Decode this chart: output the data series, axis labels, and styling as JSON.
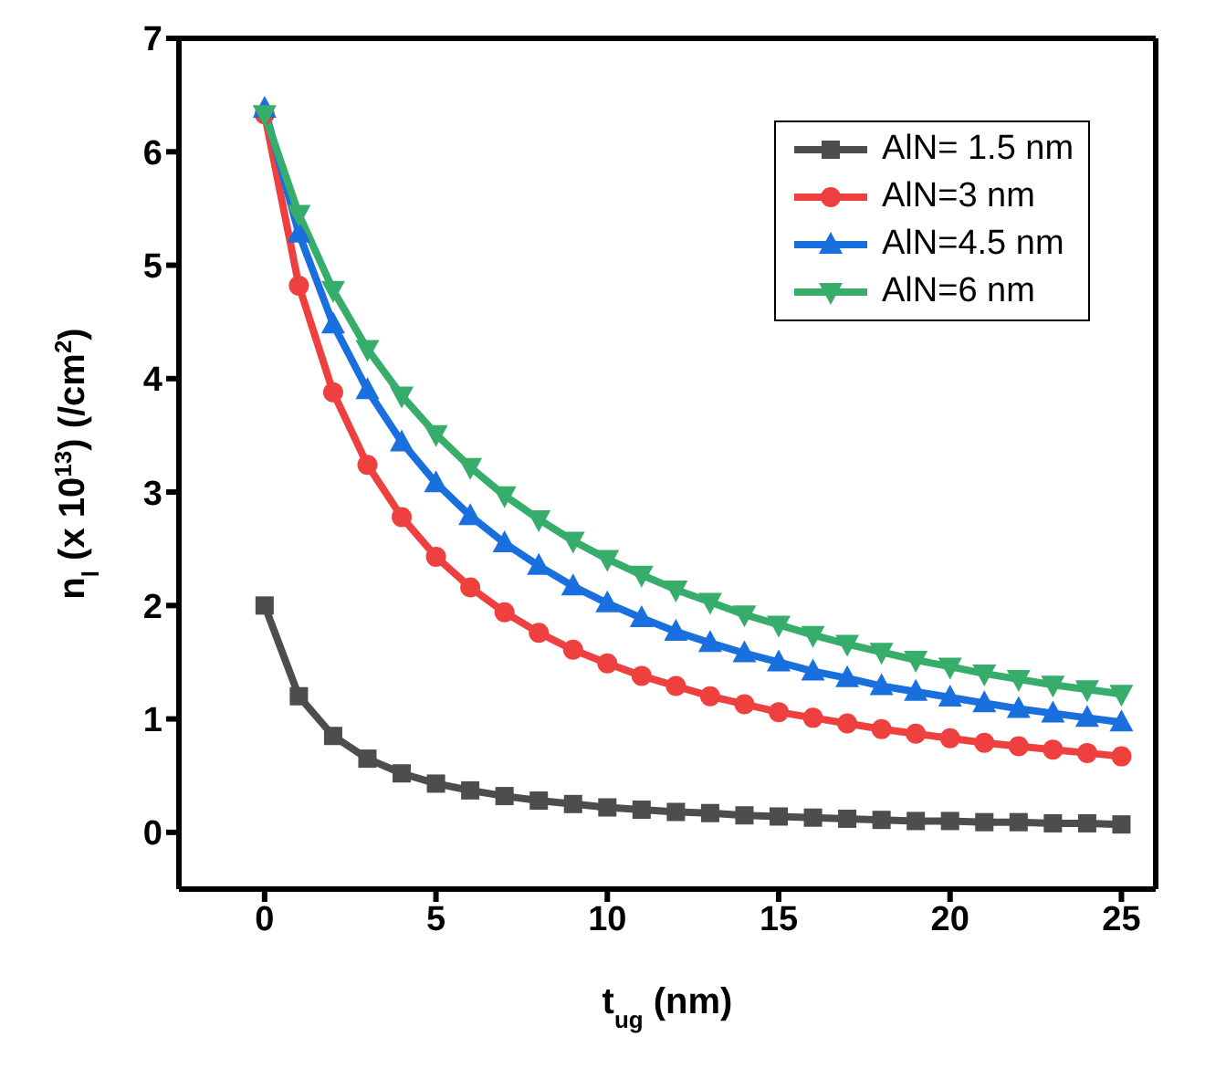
{
  "chart_data": {
    "type": "line",
    "xlabel": "t$_{ug}$ (nm)",
    "ylabel": "n$_{l}$ (x 10$^{13}$) (/cm$^{2}$)",
    "x": [
      0,
      1,
      2,
      3,
      4,
      5,
      6,
      7,
      8,
      9,
      10,
      11,
      12,
      13,
      14,
      15,
      16,
      17,
      18,
      19,
      20,
      21,
      22,
      23,
      24,
      25
    ],
    "xlim": [
      -2.5,
      26
    ],
    "xticks": [
      0,
      5,
      10,
      15,
      20,
      25
    ],
    "ylim": [
      -0.5,
      7
    ],
    "yticks": [
      0,
      1,
      2,
      3,
      4,
      5,
      6,
      7
    ],
    "grid": false,
    "legend": "top right",
    "line_style": "solid",
    "series": [
      {
        "name": "AlN= 1.5 nm",
        "color": "#4d4d4d",
        "marker": "square",
        "values": [
          2.0,
          1.2,
          0.85,
          0.65,
          0.52,
          0.43,
          0.37,
          0.32,
          0.28,
          0.25,
          0.22,
          0.2,
          0.18,
          0.17,
          0.15,
          0.14,
          0.13,
          0.12,
          0.11,
          0.1,
          0.1,
          0.09,
          0.09,
          0.08,
          0.08,
          0.07
        ]
      },
      {
        "name": "AlN=3 nm",
        "color": "#ef4040",
        "marker": "circle",
        "values": [
          6.33,
          4.82,
          3.88,
          3.24,
          2.78,
          2.43,
          2.16,
          1.94,
          1.76,
          1.61,
          1.49,
          1.38,
          1.29,
          1.2,
          1.13,
          1.06,
          1.01,
          0.96,
          0.91,
          0.87,
          0.83,
          0.79,
          0.76,
          0.73,
          0.7,
          0.67
        ]
      },
      {
        "name": "AlN=4.5 nm",
        "color": "#1a6fdf",
        "marker": "triangle",
        "values": [
          6.38,
          5.28,
          4.48,
          3.9,
          3.44,
          3.08,
          2.79,
          2.55,
          2.35,
          2.17,
          2.02,
          1.89,
          1.77,
          1.67,
          1.58,
          1.5,
          1.42,
          1.36,
          1.29,
          1.24,
          1.19,
          1.14,
          1.09,
          1.05,
          1.01,
          0.97
        ]
      },
      {
        "name": "AlN=6 nm",
        "color": "#37ad6b",
        "marker": "triangle-down",
        "values": [
          6.33,
          5.45,
          4.78,
          4.26,
          3.85,
          3.51,
          3.22,
          2.97,
          2.76,
          2.57,
          2.41,
          2.27,
          2.14,
          2.03,
          1.92,
          1.83,
          1.74,
          1.66,
          1.59,
          1.52,
          1.46,
          1.4,
          1.35,
          1.3,
          1.26,
          1.22
        ]
      }
    ]
  }
}
